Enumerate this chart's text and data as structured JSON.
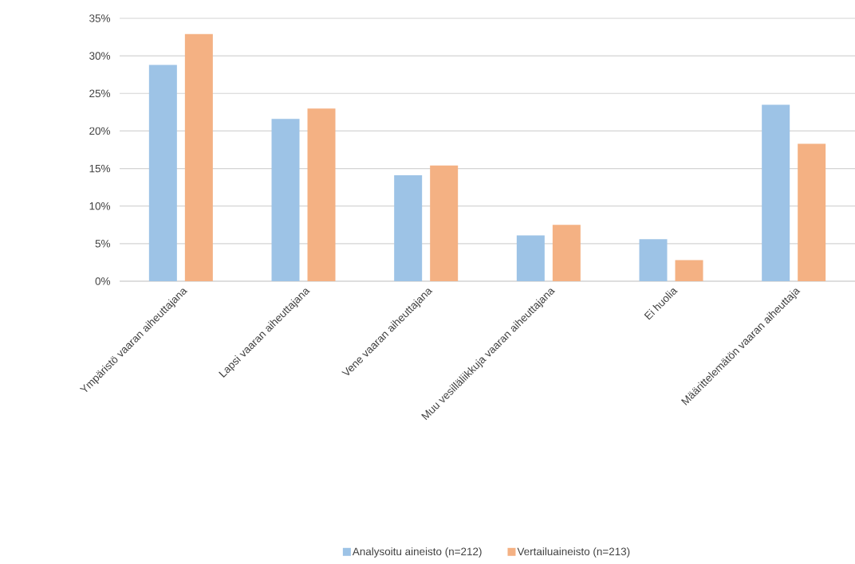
{
  "chart_data": {
    "type": "bar",
    "categories": [
      "Ympäristö vaaran aiheuttajana",
      "Lapsi vaaran aiheuttajana",
      "Vene vaaran aiheuttajana",
      "Muu vesilläliikkuja vaaran aiheuttajana",
      "Ei huolia",
      "Määrittelemätön vaaran aiheuttaja"
    ],
    "series": [
      {
        "name": "Analysoitu aineisto (n=212)",
        "color": "#9dc3e6",
        "values": [
          28.8,
          21.6,
          14.1,
          6.1,
          5.6,
          23.5
        ]
      },
      {
        "name": "Vertailuaineisto (n=213)",
        "color": "#f4b183",
        "values": [
          32.9,
          23.0,
          15.4,
          7.5,
          2.8,
          18.3
        ]
      }
    ],
    "ylim": [
      0,
      35
    ],
    "yticks": [
      {
        "value": 0,
        "label": "0%"
      },
      {
        "value": 5,
        "label": "5%"
      },
      {
        "value": 10,
        "label": "10%"
      },
      {
        "value": 15,
        "label": "15%"
      },
      {
        "value": 20,
        "label": "20%"
      },
      {
        "value": 25,
        "label": "25%"
      },
      {
        "value": 30,
        "label": "30%"
      },
      {
        "value": 35,
        "label": "35%"
      }
    ],
    "grid": "y",
    "legend": "bottom"
  }
}
